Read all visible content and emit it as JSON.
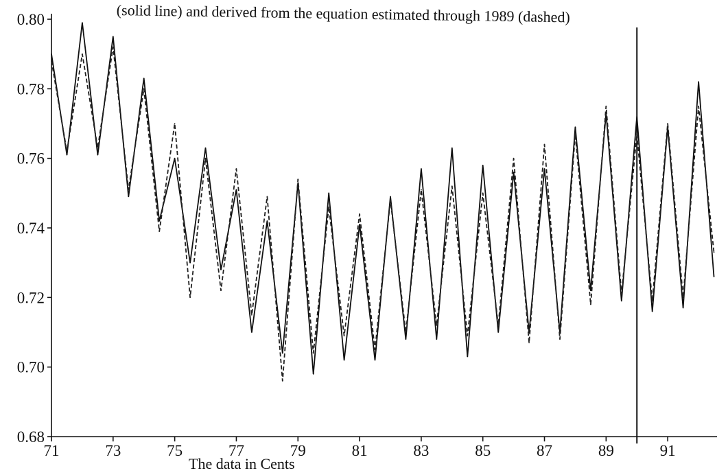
{
  "page": {
    "title": "(solid line) and derived from the equation estimated through 1989 (dashed)",
    "xlabel_fragment": "The data in Cents"
  },
  "chart_data": {
    "type": "line",
    "title": "(solid line) and derived from the equation estimated through 1989 (dashed)",
    "xlabel": "",
    "ylabel": "",
    "xlim": [
      71,
      92.6
    ],
    "ylim": [
      0.68,
      0.8
    ],
    "x_ticks": [
      71,
      73,
      75,
      77,
      79,
      81,
      83,
      85,
      87,
      89,
      91
    ],
    "x_tick_labels": [
      "71",
      "73",
      "75",
      "77",
      "79",
      "81",
      "83",
      "85",
      "87",
      "89",
      "91"
    ],
    "y_ticks": [
      0.68,
      0.7,
      0.72,
      0.74,
      0.76,
      0.78,
      0.8
    ],
    "y_tick_labels": [
      "0.68",
      "0.70",
      "0.72",
      "0.74",
      "0.76",
      "0.78",
      "0.80"
    ],
    "grid": false,
    "legend": "none",
    "vertical_marker_x": 90,
    "series": [
      {
        "style": "solid",
        "color": "#111111",
        "x": [
          71.0,
          71.5,
          72.0,
          72.5,
          73.0,
          73.5,
          74.0,
          74.5,
          75.0,
          75.5,
          76.0,
          76.5,
          77.0,
          77.5,
          78.0,
          78.5,
          79.0,
          79.5,
          80.0,
          80.5,
          81.0,
          81.5,
          82.0,
          82.5,
          83.0,
          83.5,
          84.0,
          84.5,
          85.0,
          85.5,
          86.0,
          86.5,
          87.0,
          87.5,
          88.0,
          88.5,
          89.0,
          89.5,
          90.0,
          90.5,
          91.0,
          91.5,
          92.0,
          92.5
        ],
        "values": [
          0.79,
          0.761,
          0.799,
          0.761,
          0.795,
          0.749,
          0.783,
          0.742,
          0.76,
          0.73,
          0.763,
          0.728,
          0.751,
          0.71,
          0.742,
          0.704,
          0.753,
          0.698,
          0.75,
          0.702,
          0.741,
          0.702,
          0.749,
          0.708,
          0.757,
          0.708,
          0.763,
          0.703,
          0.758,
          0.71,
          0.756,
          0.71,
          0.757,
          0.71,
          0.769,
          0.722,
          0.773,
          0.719,
          0.772,
          0.716,
          0.769,
          0.717,
          0.782,
          0.726
        ]
      },
      {
        "style": "dashed",
        "color": "#222222",
        "x": [
          71.0,
          71.5,
          72.0,
          72.5,
          73.0,
          73.5,
          74.0,
          74.5,
          75.0,
          75.5,
          76.0,
          76.5,
          77.0,
          77.5,
          78.0,
          78.5,
          79.0,
          79.5,
          80.0,
          80.5,
          81.0,
          81.5,
          82.0,
          82.5,
          83.0,
          83.5,
          84.0,
          84.5,
          85.0,
          85.5,
          86.0,
          86.5,
          87.0,
          87.5,
          88.0,
          88.5,
          89.0,
          89.5,
          90.0,
          90.5,
          91.0,
          91.5,
          92.0,
          92.5
        ],
        "values": [
          0.788,
          0.762,
          0.79,
          0.763,
          0.792,
          0.751,
          0.78,
          0.739,
          0.77,
          0.72,
          0.76,
          0.722,
          0.757,
          0.715,
          0.749,
          0.696,
          0.754,
          0.704,
          0.746,
          0.709,
          0.744,
          0.705,
          0.748,
          0.71,
          0.751,
          0.712,
          0.752,
          0.709,
          0.75,
          0.712,
          0.76,
          0.707,
          0.764,
          0.708,
          0.767,
          0.718,
          0.775,
          0.721,
          0.767,
          0.719,
          0.77,
          0.72,
          0.775,
          0.733
        ]
      }
    ]
  }
}
